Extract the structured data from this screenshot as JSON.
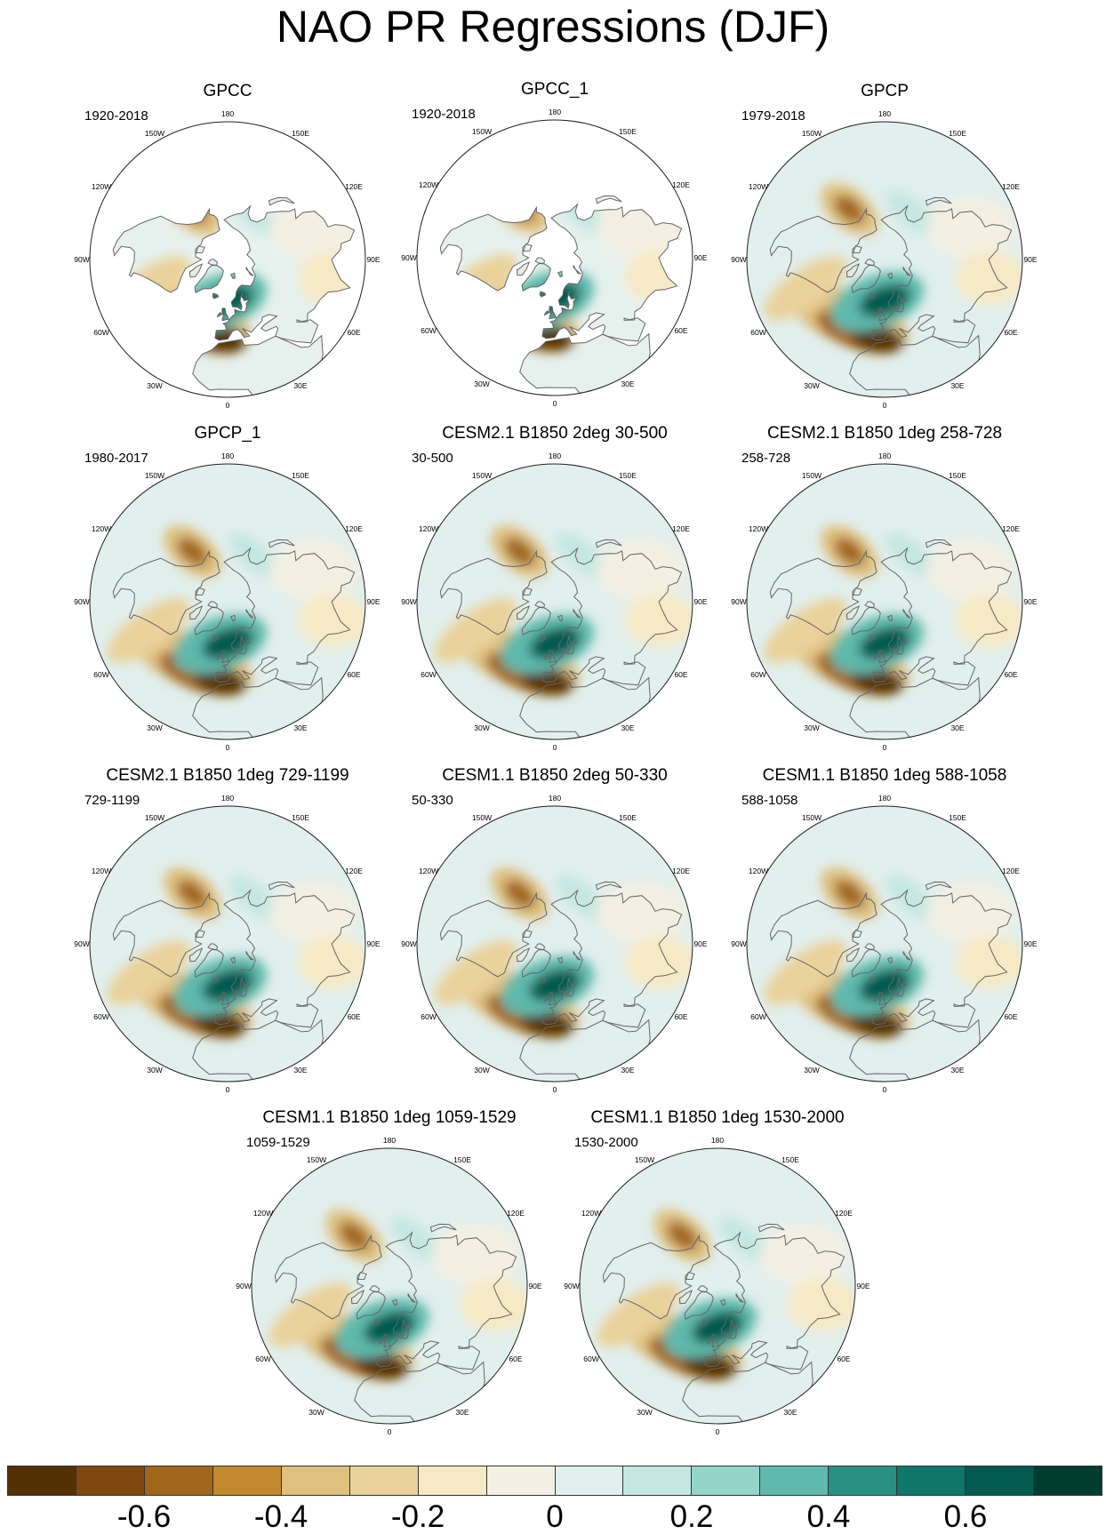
{
  "figure": {
    "title": "NAO PR Regressions (DJF)"
  },
  "lon_labels": [
    "180",
    "150E",
    "120E",
    "90E",
    "60E",
    "30E",
    "0",
    "30W",
    "60W",
    "90W",
    "120W",
    "150W"
  ],
  "panels": [
    {
      "title": "GPCC",
      "period": "1920-2018",
      "coverage": "land"
    },
    {
      "title": "GPCC_1",
      "period": "1920-2018",
      "coverage": "land"
    },
    {
      "title": "GPCP",
      "period": "1979-2018",
      "coverage": "global"
    },
    {
      "title": "GPCP_1",
      "period": "1980-2017",
      "coverage": "global"
    },
    {
      "title": "CESM2.1 B1850 2deg 30-500",
      "period": "30-500",
      "coverage": "global"
    },
    {
      "title": "CESM2.1 B1850 1deg 258-728",
      "period": "258-728",
      "coverage": "global"
    },
    {
      "title": "CESM2.1 B1850 1deg 729-1199",
      "period": "729-1199",
      "coverage": "global"
    },
    {
      "title": "CESM1.1 B1850 2deg 50-330",
      "period": "50-330",
      "coverage": "global"
    },
    {
      "title": "CESM1.1 B1850 1deg 588-1058",
      "period": "588-1058",
      "coverage": "global"
    },
    {
      "title": "CESM1.1 B1850 1deg 1059-1529",
      "period": "1059-1529",
      "coverage": "global"
    },
    {
      "title": "CESM1.1 B1850 1deg 1530-2000",
      "period": "1530-2000",
      "coverage": "global"
    }
  ],
  "colorbar": {
    "colors": [
      "#543005",
      "#7f470d",
      "#a0661b",
      "#c2892f",
      "#dfc07f",
      "#ead29b",
      "#f6e9c5",
      "#f3efe2",
      "#e1efed",
      "#c4e7e1",
      "#94d5c9",
      "#5fb9ac",
      "#2a9084",
      "#0f766b",
      "#035a4f",
      "#003c30"
    ],
    "tick_labels": [
      "-0.6",
      "-0.4",
      "-0.2",
      "0",
      "0.2",
      "0.4",
      "0.6"
    ],
    "tick_values": [
      -0.6,
      -0.4,
      -0.2,
      0,
      0.2,
      0.4,
      0.6
    ],
    "range": [
      -0.8,
      0.8
    ]
  }
}
